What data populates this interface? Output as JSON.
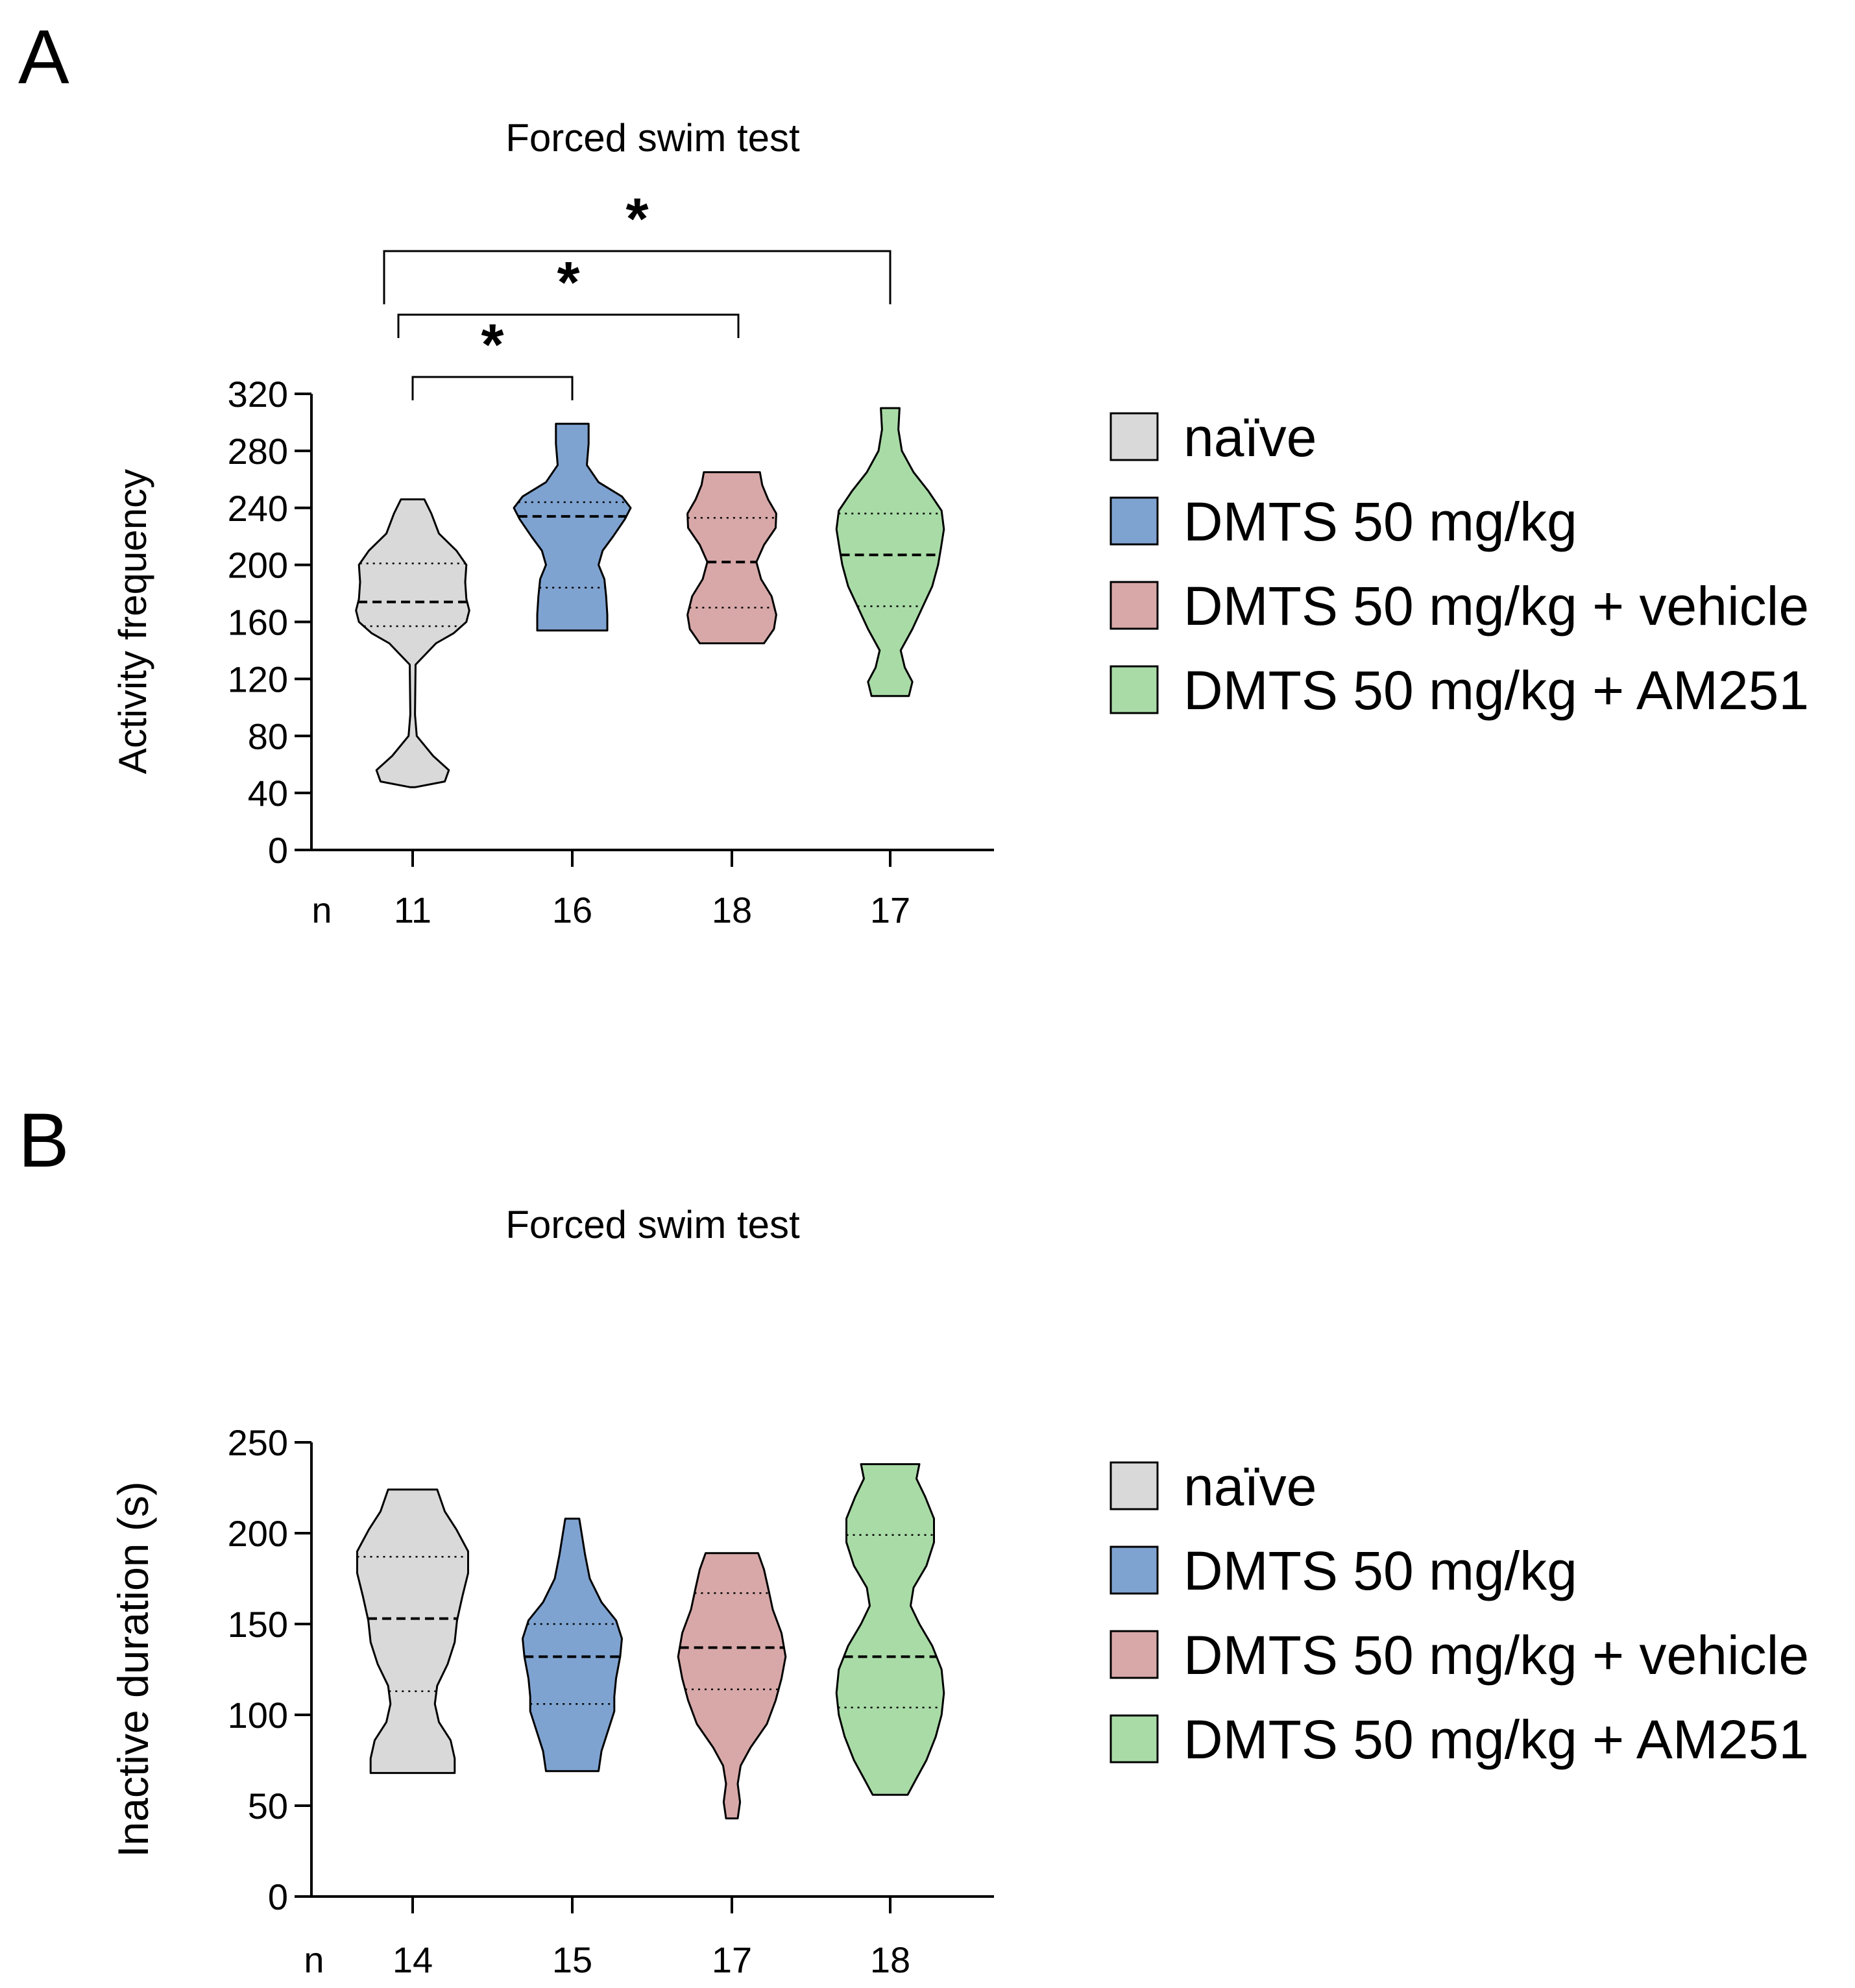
{
  "chart_data": [
    {
      "panel": "A",
      "type": "violin",
      "title": "Forced swim test",
      "ylabel": "Activity frequency",
      "ylim": [
        0,
        320
      ],
      "yticks": [
        0,
        40,
        80,
        120,
        160,
        200,
        240,
        280,
        320
      ],
      "n_label": "n",
      "groups": [
        {
          "name": "naïve",
          "color": "#d9d9d9",
          "n": "11",
          "min": 44,
          "max": 246,
          "median": 174,
          "q1": 157,
          "q3": 201,
          "profile": [
            [
              44,
              0.04
            ],
            [
              48,
              0.55
            ],
            [
              56,
              0.62
            ],
            [
              66,
              0.35
            ],
            [
              80,
              0.07
            ],
            [
              95,
              0.04
            ],
            [
              130,
              0.05
            ],
            [
              145,
              0.4
            ],
            [
              152,
              0.7
            ],
            [
              160,
              0.92
            ],
            [
              168,
              0.97
            ],
            [
              176,
              0.92
            ],
            [
              188,
              0.9
            ],
            [
              200,
              0.92
            ],
            [
              210,
              0.75
            ],
            [
              222,
              0.45
            ],
            [
              236,
              0.32
            ],
            [
              246,
              0.2
            ]
          ]
        },
        {
          "name": "DMTS 50 mg/kg",
          "color": "#7fa3d1",
          "n": "16",
          "min": 154,
          "max": 299,
          "median": 234,
          "q1": 184,
          "q3": 244,
          "profile": [
            [
              154,
              0.6
            ],
            [
              165,
              0.6
            ],
            [
              178,
              0.58
            ],
            [
              190,
              0.55
            ],
            [
              200,
              0.45
            ],
            [
              210,
              0.52
            ],
            [
              220,
              0.7
            ],
            [
              232,
              0.9
            ],
            [
              240,
              1.0
            ],
            [
              248,
              0.85
            ],
            [
              258,
              0.45
            ],
            [
              270,
              0.25
            ],
            [
              285,
              0.28
            ],
            [
              299,
              0.28
            ]
          ]
        },
        {
          "name": "DMTS 50 mg/kg + vehicle",
          "color": "#d8a8a8",
          "n": "18",
          "min": 145,
          "max": 265,
          "median": 202,
          "q1": 170,
          "q3": 233,
          "profile": [
            [
              145,
              0.55
            ],
            [
              155,
              0.72
            ],
            [
              165,
              0.76
            ],
            [
              178,
              0.68
            ],
            [
              190,
              0.5
            ],
            [
              202,
              0.42
            ],
            [
              214,
              0.55
            ],
            [
              226,
              0.75
            ],
            [
              236,
              0.76
            ],
            [
              246,
              0.62
            ],
            [
              256,
              0.52
            ],
            [
              265,
              0.48
            ]
          ]
        },
        {
          "name": "DMTS 50 mg/kg + AM251",
          "color": "#a9dba6",
          "n": "17",
          "min": 108,
          "max": 310,
          "median": 207,
          "q1": 171,
          "q3": 236,
          "profile": [
            [
              108,
              0.32
            ],
            [
              118,
              0.38
            ],
            [
              128,
              0.25
            ],
            [
              140,
              0.18
            ],
            [
              155,
              0.38
            ],
            [
              170,
              0.55
            ],
            [
              185,
              0.72
            ],
            [
              200,
              0.82
            ],
            [
              212,
              0.87
            ],
            [
              225,
              0.92
            ],
            [
              238,
              0.88
            ],
            [
              252,
              0.65
            ],
            [
              265,
              0.4
            ],
            [
              280,
              0.2
            ],
            [
              295,
              0.14
            ],
            [
              310,
              0.16
            ]
          ]
        }
      ],
      "significance": [
        {
          "from": 0,
          "to": 1,
          "label": "*"
        },
        {
          "from": 0,
          "to": 2,
          "label": "*"
        },
        {
          "from": 0,
          "to": 3,
          "label": "*"
        }
      ]
    },
    {
      "panel": "B",
      "type": "violin",
      "title": "Forced swim test",
      "ylabel": "Inactive duration (s)",
      "ylim": [
        0,
        250
      ],
      "yticks": [
        0,
        50,
        100,
        150,
        200,
        250
      ],
      "n_label": "n",
      "groups": [
        {
          "name": "naïve",
          "color": "#d9d9d9",
          "n": "14",
          "min": 68,
          "max": 224,
          "median": 153,
          "q1": 113,
          "q3": 187,
          "profile": [
            [
              68,
              0.72
            ],
            [
              76,
              0.72
            ],
            [
              86,
              0.65
            ],
            [
              96,
              0.45
            ],
            [
              106,
              0.38
            ],
            [
              116,
              0.42
            ],
            [
              128,
              0.6
            ],
            [
              140,
              0.72
            ],
            [
              152,
              0.76
            ],
            [
              165,
              0.85
            ],
            [
              178,
              0.95
            ],
            [
              190,
              0.95
            ],
            [
              202,
              0.75
            ],
            [
              212,
              0.55
            ],
            [
              224,
              0.42
            ]
          ]
        },
        {
          "name": "DMTS 50 mg/kg",
          "color": "#7fa3d1",
          "n": "15",
          "min": 69,
          "max": 208,
          "median": 132,
          "q1": 106,
          "q3": 150,
          "profile": [
            [
              69,
              0.45
            ],
            [
              80,
              0.5
            ],
            [
              92,
              0.62
            ],
            [
              102,
              0.72
            ],
            [
              110,
              0.72
            ],
            [
              120,
              0.75
            ],
            [
              132,
              0.82
            ],
            [
              142,
              0.85
            ],
            [
              152,
              0.75
            ],
            [
              162,
              0.5
            ],
            [
              175,
              0.3
            ],
            [
              188,
              0.22
            ],
            [
              200,
              0.16
            ],
            [
              208,
              0.12
            ]
          ]
        },
        {
          "name": "DMTS 50 mg/kg + vehicle",
          "color": "#d8a8a8",
          "n": "17",
          "min": 43,
          "max": 189,
          "median": 137,
          "q1": 114,
          "q3": 167,
          "profile": [
            [
              43,
              0.1
            ],
            [
              52,
              0.14
            ],
            [
              62,
              0.1
            ],
            [
              72,
              0.15
            ],
            [
              82,
              0.32
            ],
            [
              95,
              0.6
            ],
            [
              108,
              0.75
            ],
            [
              120,
              0.85
            ],
            [
              132,
              0.92
            ],
            [
              145,
              0.85
            ],
            [
              158,
              0.7
            ],
            [
              170,
              0.62
            ],
            [
              180,
              0.55
            ],
            [
              189,
              0.45
            ]
          ]
        },
        {
          "name": "DMTS 50 mg/kg + AM251",
          "color": "#a9dba6",
          "n": "18",
          "min": 56,
          "max": 238,
          "median": 132,
          "q1": 104,
          "q3": 199,
          "profile": [
            [
              56,
              0.3
            ],
            [
              65,
              0.45
            ],
            [
              75,
              0.62
            ],
            [
              88,
              0.78
            ],
            [
              100,
              0.88
            ],
            [
              112,
              0.92
            ],
            [
              125,
              0.88
            ],
            [
              138,
              0.72
            ],
            [
              150,
              0.5
            ],
            [
              160,
              0.35
            ],
            [
              170,
              0.4
            ],
            [
              182,
              0.62
            ],
            [
              195,
              0.75
            ],
            [
              208,
              0.75
            ],
            [
              220,
              0.6
            ],
            [
              230,
              0.45
            ],
            [
              238,
              0.5
            ]
          ]
        }
      ],
      "significance": []
    }
  ],
  "legend": {
    "items": [
      "naïve",
      "DMTS 50 mg/kg",
      "DMTS 50 mg/kg + vehicle",
      "DMTS 50 mg/kg + AM251"
    ]
  }
}
